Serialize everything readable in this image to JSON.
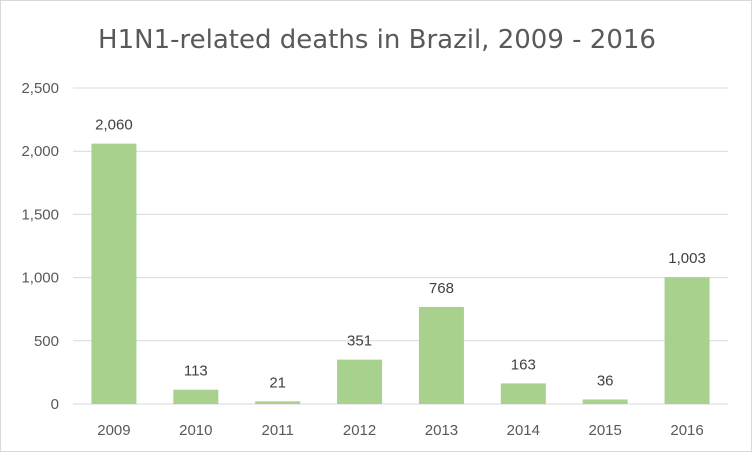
{
  "chart_data": {
    "type": "bar",
    "title": "H1N1-related deaths in Brazil, 2009 - 2016",
    "categories": [
      "2009",
      "2010",
      "2011",
      "2012",
      "2013",
      "2014",
      "2015",
      "2016"
    ],
    "values": [
      2060,
      113,
      21,
      351,
      768,
      163,
      36,
      1003
    ],
    "value_labels": [
      "2,060",
      "113",
      "21",
      "351",
      "768",
      "163",
      "36",
      "1,003"
    ],
    "yticks": [
      0,
      500,
      1000,
      1500,
      2000,
      2500
    ],
    "ytick_labels": [
      "0",
      "500",
      "1,000",
      "1,500",
      "2,000",
      "2,500"
    ],
    "ylim": [
      0,
      2500
    ],
    "xlabel": "",
    "ylabel": "",
    "grid": true,
    "legend": "none",
    "colors": {
      "bar": "#a9d18e",
      "grid": "#d9d9d9",
      "axis": "#d9d9d9"
    }
  }
}
